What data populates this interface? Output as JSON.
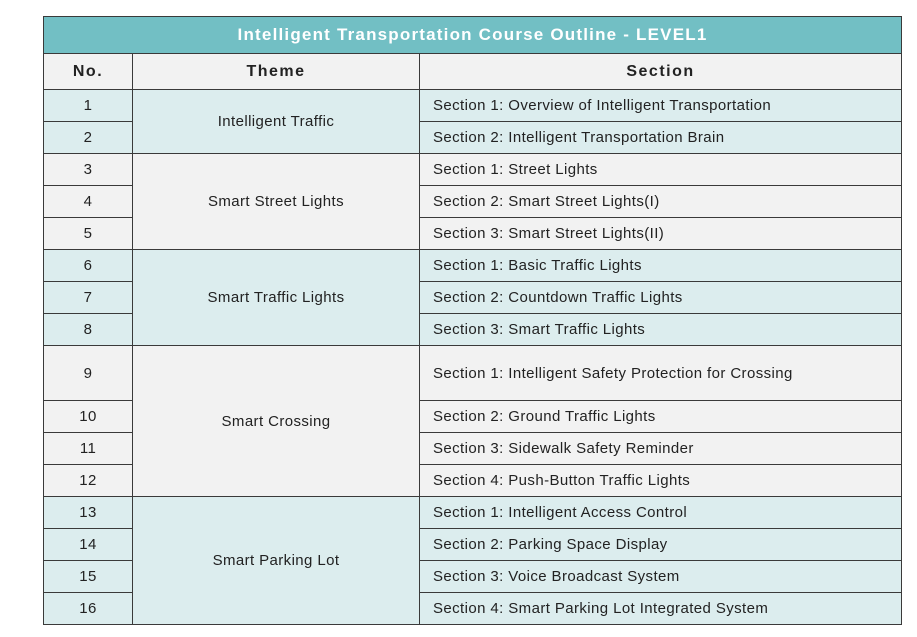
{
  "title": "Intelligent Transportation Course Outline - LEVEL1",
  "headers": {
    "no": "No.",
    "theme": "Theme",
    "section": "Section"
  },
  "groups": [
    {
      "theme": "Intelligent Traffic",
      "shade": "teal",
      "rows": [
        {
          "no": "1",
          "section": "Section 1: Overview of Intelligent Transportation"
        },
        {
          "no": "2",
          "section": "Section 2: Intelligent Transportation Brain"
        }
      ]
    },
    {
      "theme": "Smart Street Lights",
      "shade": "gray",
      "rows": [
        {
          "no": "3",
          "section": "Section 1: Street Lights"
        },
        {
          "no": "4",
          "section": "Section 2: Smart Street Lights(I)"
        },
        {
          "no": "5",
          "section": "Section 3: Smart Street Lights(II)"
        }
      ]
    },
    {
      "theme": "Smart Traffic Lights",
      "shade": "teal",
      "rows": [
        {
          "no": "6",
          "section": "Section 1: Basic Traffic Lights"
        },
        {
          "no": "7",
          "section": "Section 2: Countdown Traffic Lights"
        },
        {
          "no": "8",
          "section": "Section 3: Smart Traffic Lights"
        }
      ]
    },
    {
      "theme": "Smart Crossing",
      "shade": "gray",
      "rows": [
        {
          "no": "9",
          "section": "Section 1: Intelligent Safety Protection for Crossing"
        },
        {
          "no": "10",
          "section": "Section 2: Ground Traffic Lights"
        },
        {
          "no": "11",
          "section": "Section 3: Sidewalk Safety Reminder"
        },
        {
          "no": "12",
          "section": "Section 4: Push-Button Traffic Lights"
        }
      ]
    },
    {
      "theme": "Smart Parking Lot",
      "shade": "teal",
      "rows": [
        {
          "no": "13",
          "section": "Section 1: Intelligent Access Control"
        },
        {
          "no": "14",
          "section": "Section 2: Parking Space Display"
        },
        {
          "no": "15",
          "section": "Section 3: Voice Broadcast System"
        },
        {
          "no": "16",
          "section": "Section 4: Smart Parking Lot Integrated System"
        }
      ]
    }
  ],
  "colors": {
    "title_bg": "#72bfc4",
    "teal_row": "#dcedee",
    "gray_row": "#f2f2f2",
    "border": "#3a3a3a"
  }
}
